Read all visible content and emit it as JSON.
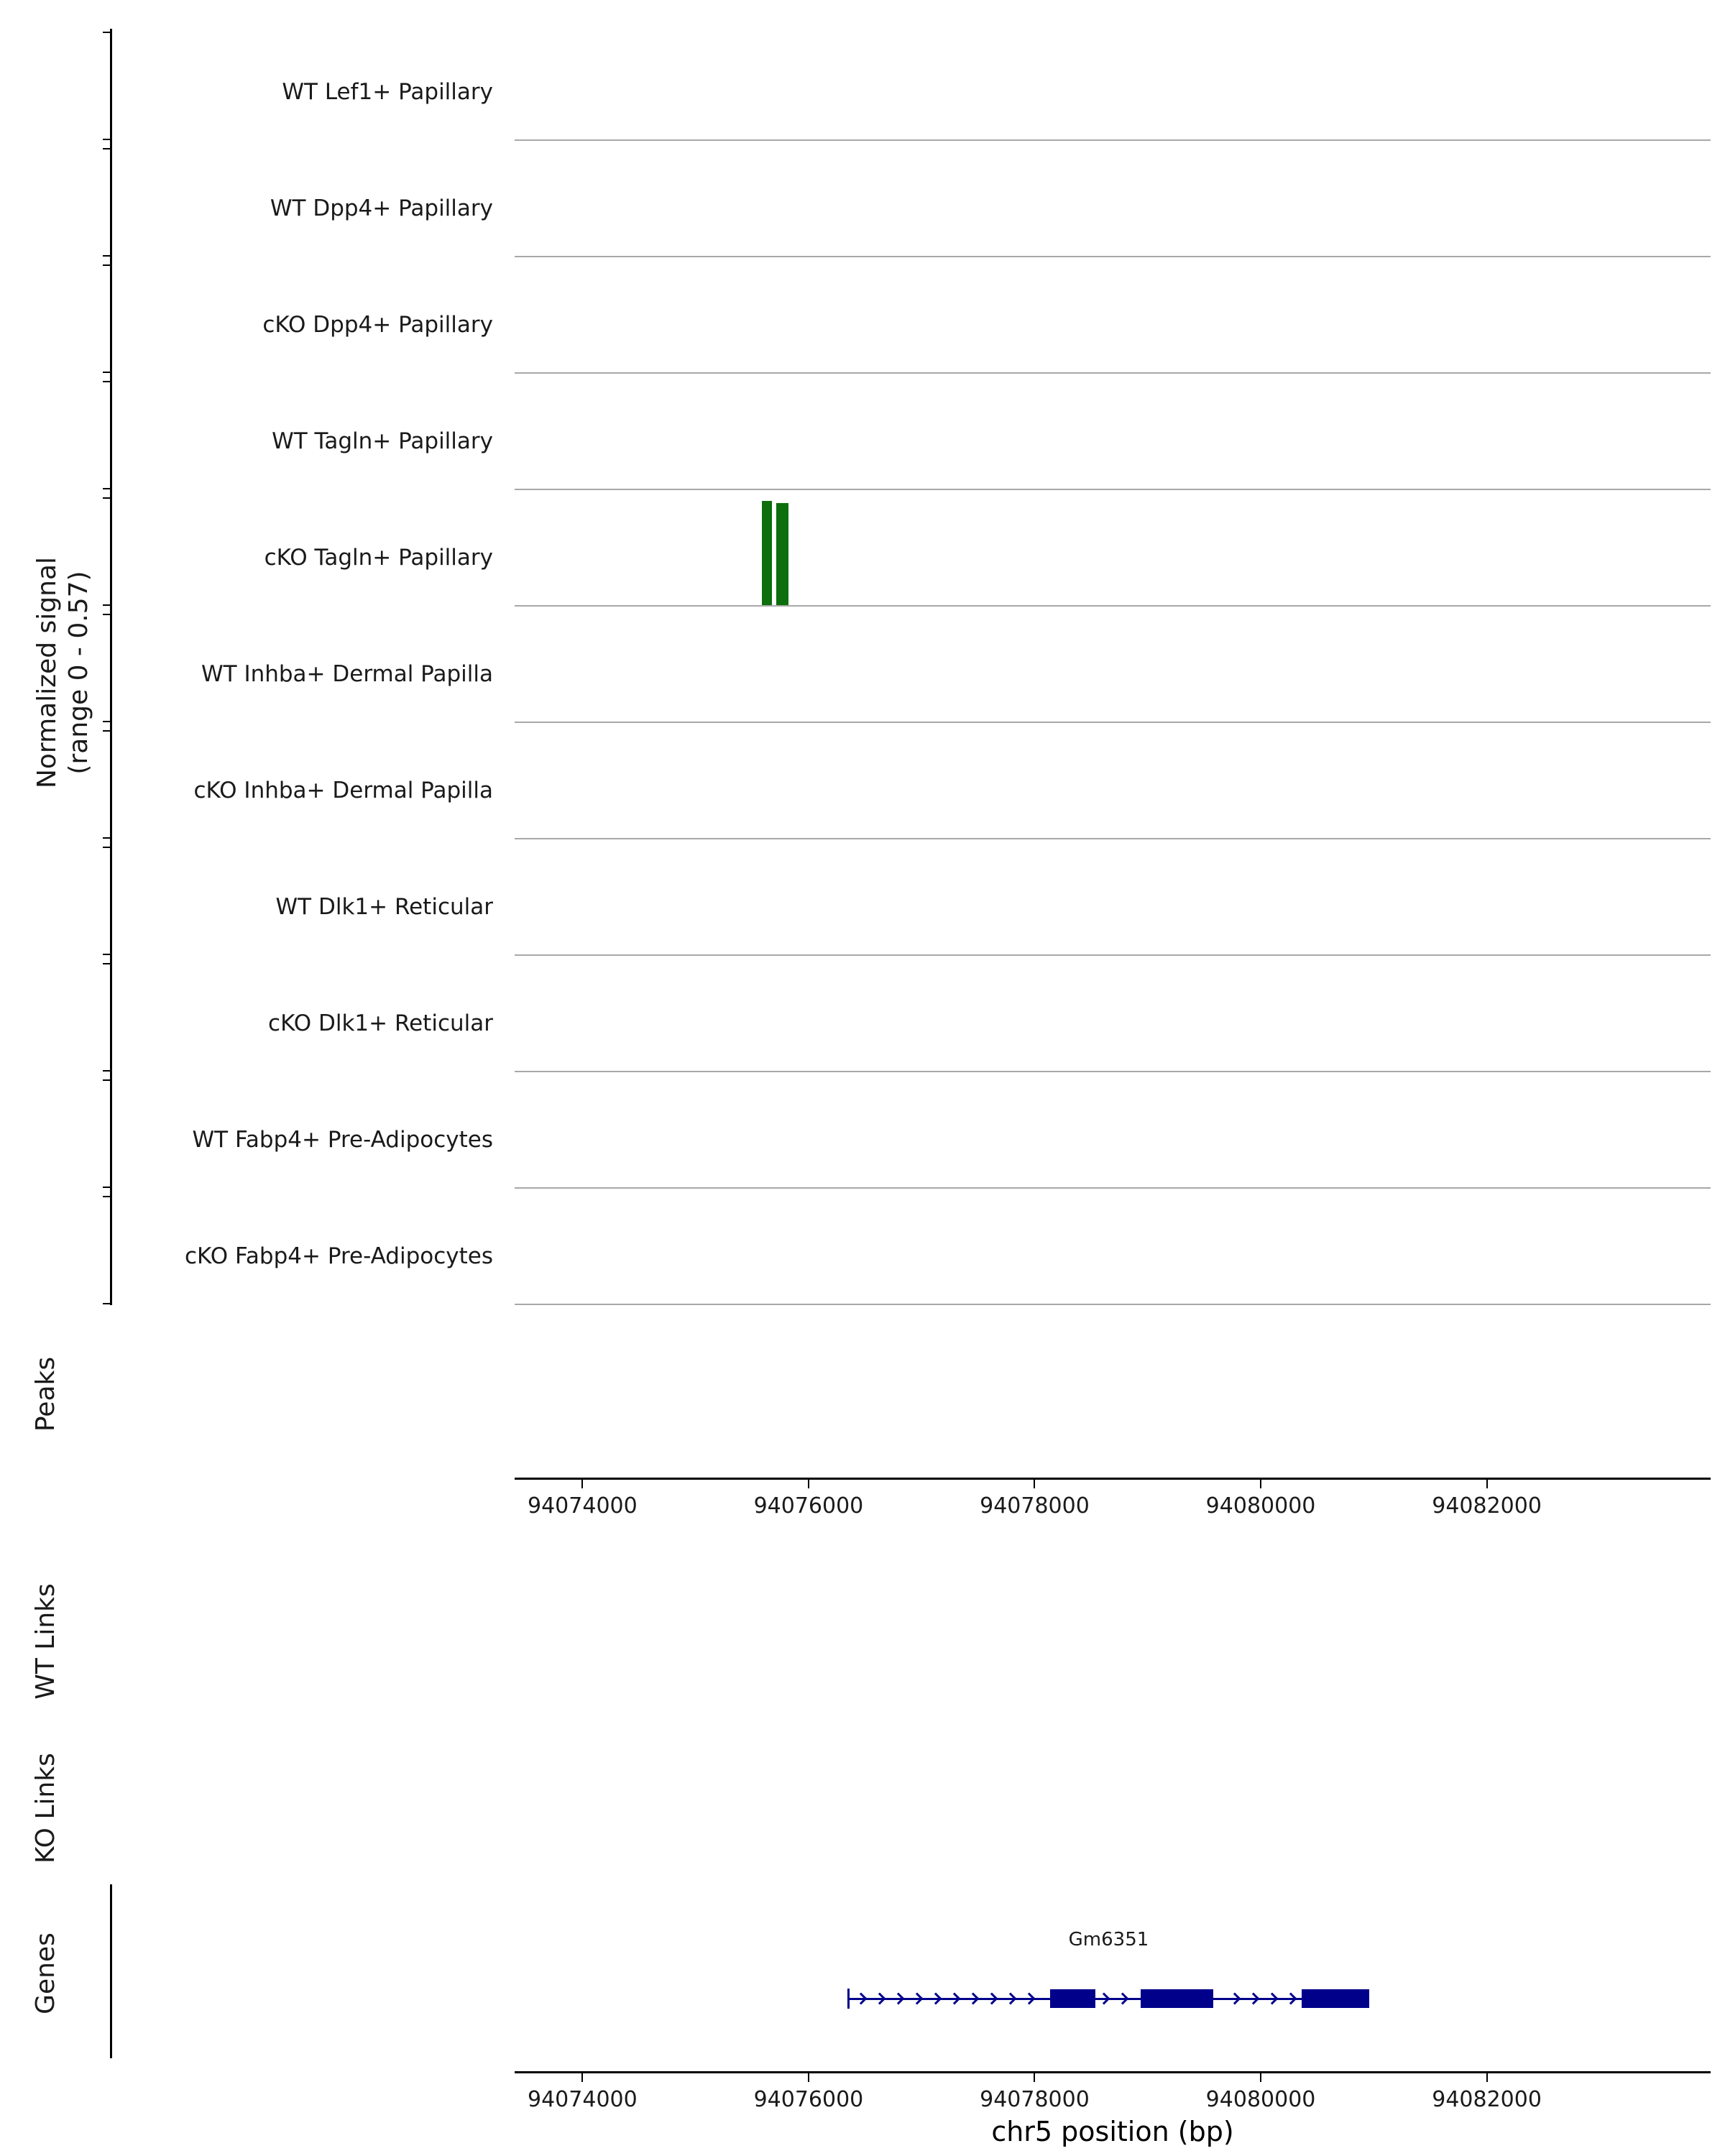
{
  "y_axis": {
    "line1": "Normalized signal",
    "line2": "(range 0 - 0.57)"
  },
  "sections": {
    "peaks": "Peaks",
    "wt_links": "WT Links",
    "ko_links": "KO Links",
    "genes": "Genes"
  },
  "chart_data": {
    "type": "area",
    "title": "",
    "x_label": "chr5 position (bp)",
    "x_range": [
      94073400,
      94083980
    ],
    "x_ticks": [
      94074000,
      94076000,
      94078000,
      94080000,
      94082000
    ],
    "signal_range": [
      0,
      0.57
    ],
    "tracks": [
      {
        "label": "WT Lef1+ Papillary",
        "peaks": []
      },
      {
        "label": "WT Dpp4+ Papillary",
        "peaks": []
      },
      {
        "label": "cKO Dpp4+ Papillary",
        "peaks": []
      },
      {
        "label": "WT Tagln+ Papillary",
        "peaks": []
      },
      {
        "label": "cKO Tagln+ Papillary",
        "peaks": [
          {
            "start": 94075590,
            "end": 94075675,
            "value": 0.57
          },
          {
            "start": 94075715,
            "end": 94075820,
            "value": 0.56
          }
        ]
      },
      {
        "label": "WT Inhba+ Dermal Papilla",
        "peaks": []
      },
      {
        "label": "cKO Inhba+ Dermal Papilla",
        "peaks": []
      },
      {
        "label": "WT Dlk1+ Reticular",
        "peaks": []
      },
      {
        "label": "cKO Dlk1+ Reticular",
        "peaks": []
      },
      {
        "label": "WT Fabp4+ Pre-Adipocytes",
        "peaks": []
      },
      {
        "label": "cKO Fabp4+ Pre-Adipocytes",
        "peaks": []
      }
    ],
    "genes": [
      {
        "name": "Gm6351",
        "start": 94076350,
        "end": 94080960,
        "strand": "+",
        "exons": [
          [
            94078140,
            94078540
          ],
          [
            94078940,
            94079580
          ],
          [
            94080360,
            94080960
          ]
        ]
      }
    ],
    "colors": {
      "signal": "#0c6e0c",
      "gene": "#00008b",
      "baseline": "#a8a8a8",
      "axis": "#000000"
    }
  }
}
